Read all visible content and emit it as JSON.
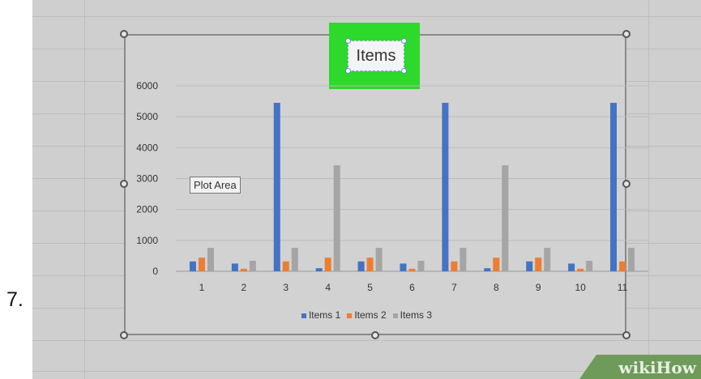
{
  "step_label": "7.",
  "chart_title": "Items",
  "tooltip": "Plot Area",
  "watermark": "wikiHow",
  "colors": {
    "sheet_bg": "#cfcfcf",
    "title_highlight": "#2dd92a",
    "series_1": "#4472c4",
    "series_2": "#ed7d31",
    "series_3": "#a5a5a5"
  },
  "chart_data": {
    "type": "bar",
    "title": "Items",
    "categories": [
      "1",
      "2",
      "3",
      "4",
      "5",
      "6",
      "7",
      "8",
      "9",
      "10",
      "11"
    ],
    "series": [
      {
        "name": "Items 1",
        "values": [
          320,
          250,
          5450,
          100,
          320,
          250,
          5450,
          100,
          320,
          250,
          5450
        ]
      },
      {
        "name": "Items 2",
        "values": [
          440,
          80,
          320,
          440,
          440,
          80,
          320,
          440,
          440,
          80,
          320
        ]
      },
      {
        "name": "Items 3",
        "values": [
          760,
          340,
          760,
          3430,
          760,
          340,
          760,
          3430,
          760,
          340,
          760
        ]
      }
    ],
    "y_ticks": [
      "0",
      "1000",
      "2000",
      "3000",
      "4000",
      "5000",
      "6000"
    ],
    "ylim": [
      0,
      6000
    ],
    "grid": true,
    "legend_position": "bottom",
    "xlabel": "",
    "ylabel": ""
  }
}
